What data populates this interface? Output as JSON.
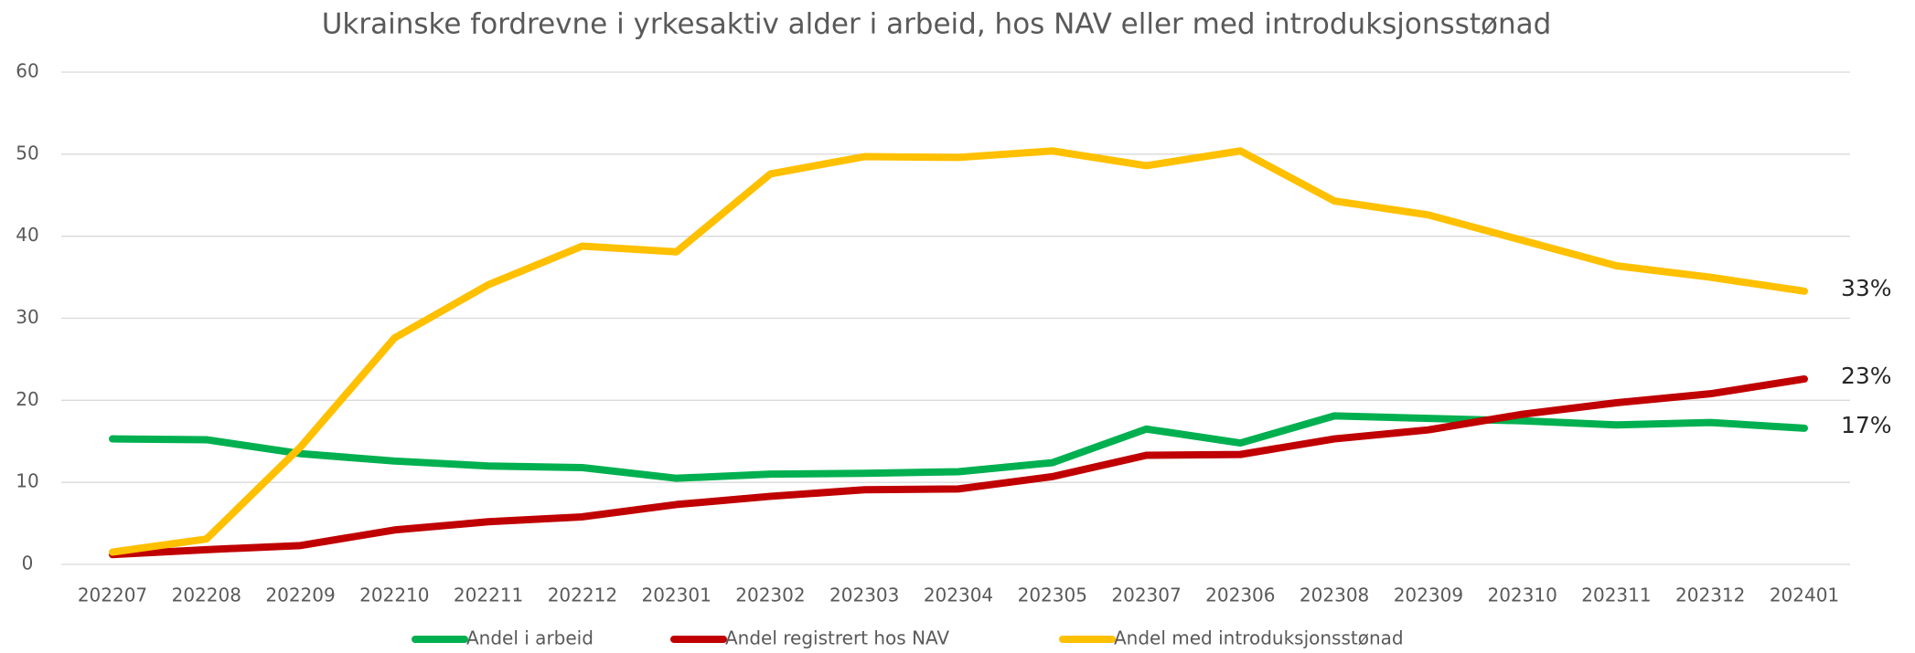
{
  "chart_data": {
    "type": "line",
    "title": "Ukrainske fordrevne i yrkesaktiv alder i arbeid, hos NAV eller med introduksjonsstønad",
    "categories": [
      "202207",
      "202208",
      "202209",
      "202210",
      "202211",
      "202212",
      "202301",
      "202302",
      "202303",
      "202304",
      "202305",
      "202307",
      "202306",
      "202308",
      "202309",
      "202310",
      "202311",
      "202312",
      "202401"
    ],
    "series": [
      {
        "name": "Andel i arbeid",
        "color": "#00b050",
        "values": [
          15.3,
          15.2,
          13.5,
          12.6,
          12.0,
          11.8,
          10.5,
          11.0,
          11.1,
          11.3,
          12.4,
          16.5,
          14.8,
          18.1,
          17.8,
          17.5,
          17.0,
          17.3,
          16.6
        ],
        "value_labels": [
          null,
          null,
          null,
          null,
          null,
          null,
          null,
          null,
          null,
          null,
          null,
          null,
          null,
          null,
          null,
          null,
          null,
          null,
          "17%"
        ]
      },
      {
        "name": "Andel registrert hos NAV",
        "color": "#c00000",
        "values": [
          1.2,
          1.8,
          2.3,
          4.2,
          5.2,
          5.8,
          7.3,
          8.3,
          9.1,
          9.2,
          10.7,
          13.3,
          13.4,
          15.3,
          16.4,
          18.3,
          19.7,
          20.8,
          22.6
        ],
        "value_labels": [
          null,
          null,
          null,
          null,
          null,
          null,
          null,
          null,
          null,
          null,
          null,
          null,
          null,
          null,
          null,
          null,
          null,
          null,
          "23%"
        ]
      },
      {
        "name": "Andel med introduksjonsstønad",
        "color": "#ffc000",
        "values": [
          1.5,
          3.1,
          14.3,
          27.6,
          34.1,
          38.8,
          38.1,
          47.6,
          49.7,
          49.6,
          50.4,
          48.6,
          50.4,
          44.3,
          42.6,
          39.5,
          36.4,
          35.0,
          33.3
        ],
        "value_labels": [
          null,
          null,
          null,
          null,
          null,
          null,
          null,
          null,
          null,
          null,
          null,
          null,
          null,
          null,
          null,
          null,
          null,
          null,
          "33%"
        ]
      }
    ],
    "ylim": [
      0,
      60
    ],
    "yticks": [
      0,
      10,
      20,
      30,
      40,
      50,
      60
    ],
    "grid": true,
    "legend": "bottom"
  }
}
